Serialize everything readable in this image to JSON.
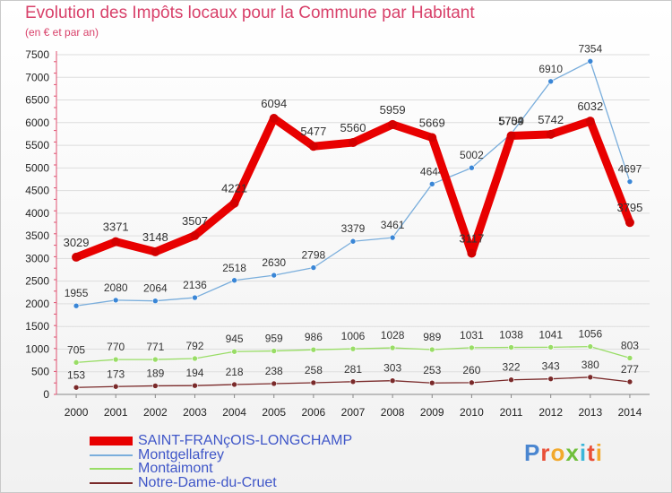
{
  "header": {
    "title": "Evolution des Impôts locaux pour la Commune par Habitant",
    "subtitle": "(en € et par an)"
  },
  "logo": {
    "text": "Proxiti"
  },
  "chart_data": {
    "type": "line",
    "title": "Evolution des Impôts locaux pour la Commune par Habitant",
    "subtitle": "(en € et par an)",
    "xlabel": "",
    "ylabel": "",
    "ylim": [
      0,
      7500
    ],
    "yticks": [
      0,
      500,
      1000,
      1500,
      2000,
      2500,
      3000,
      3500,
      4000,
      4500,
      5000,
      5500,
      6000,
      6500,
      7000,
      7500
    ],
    "x": [
      "2000",
      "2001",
      "2002",
      "2003",
      "2004",
      "2005",
      "2006",
      "2007",
      "2008",
      "2009",
      "2010",
      "2011",
      "2012",
      "2013",
      "2014"
    ],
    "legend_position": "bottom-left",
    "series": [
      {
        "name": "SAINT-FRANçOIS-LONGCHAMP",
        "color": "#e80000",
        "values": [
          3029,
          3371,
          3148,
          3507,
          4221,
          6094,
          5477,
          5560,
          5959,
          5669,
          3117,
          5709,
          5742,
          6032,
          3795
        ]
      },
      {
        "name": "Montgellafrey",
        "color": "#7aaedc",
        "values": [
          1955,
          2080,
          2064,
          2136,
          2518,
          2630,
          2798,
          3379,
          3461,
          4644,
          5002,
          5754,
          6910,
          7354,
          4697
        ]
      },
      {
        "name": "Montaimont",
        "color": "#99dd66",
        "values": [
          705,
          770,
          771,
          792,
          945,
          959,
          986,
          1006,
          1028,
          989,
          1031,
          1038,
          1041,
          1056,
          803
        ]
      },
      {
        "name": "Notre-Dame-du-Cruet",
        "color": "#7a2a2a",
        "values": [
          153,
          173,
          189,
          194,
          218,
          238,
          258,
          281,
          303,
          253,
          260,
          322,
          343,
          380,
          277
        ]
      }
    ]
  }
}
